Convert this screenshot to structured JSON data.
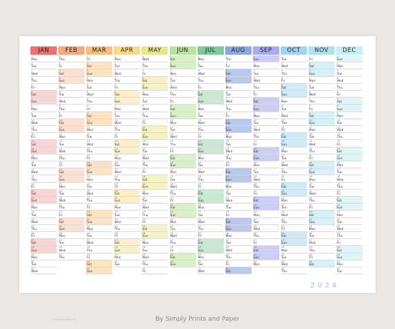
{
  "year": "2024",
  "credit": "By Simply Prints and Paper",
  "footer_note": "simplyprintsandpaper.com",
  "months": [
    {
      "name": "JAN",
      "days": 31,
      "start": 1,
      "header": "#ef6f6c",
      "tint": "#fbd4d3"
    },
    {
      "name": "FEB",
      "days": 29,
      "start": 4,
      "header": "#f6a882",
      "tint": "#fde0d1"
    },
    {
      "name": "MAR",
      "days": 31,
      "start": 5,
      "header": "#f8bf7c",
      "tint": "#fde3c2"
    },
    {
      "name": "APR",
      "days": 30,
      "start": 1,
      "header": "#fbd98a",
      "tint": "#fdf0c9"
    },
    {
      "name": "MAY",
      "days": 31,
      "start": 3,
      "header": "#e8e58c",
      "tint": "#f6f2c3"
    },
    {
      "name": "JUN",
      "days": 30,
      "start": 6,
      "header": "#b8e29a",
      "tint": "#d9efc8"
    },
    {
      "name": "JUL",
      "days": 31,
      "start": 1,
      "header": "#7fc89a",
      "tint": "#c8e8d2"
    },
    {
      "name": "AUG",
      "days": 31,
      "start": 4,
      "header": "#8aa9e0",
      "tint": "#b9c8ec"
    },
    {
      "name": "SEP",
      "days": 30,
      "start": 0,
      "header": "#a6abf2",
      "tint": "#cbcdf7"
    },
    {
      "name": "OCT",
      "days": 31,
      "start": 2,
      "header": "#9fd3ef",
      "tint": "#cfe9f6"
    },
    {
      "name": "NOV",
      "days": 30,
      "start": 5,
      "header": "#aee0ef",
      "tint": "#d7eff6"
    },
    {
      "name": "DEC",
      "days": 31,
      "start": 0,
      "header": "#c9edf3",
      "tint": "#e1f5f8"
    }
  ],
  "weekdays": [
    "Sun",
    "Mon",
    "Tue",
    "Wed",
    "Thu",
    "Fri",
    "Sat"
  ]
}
